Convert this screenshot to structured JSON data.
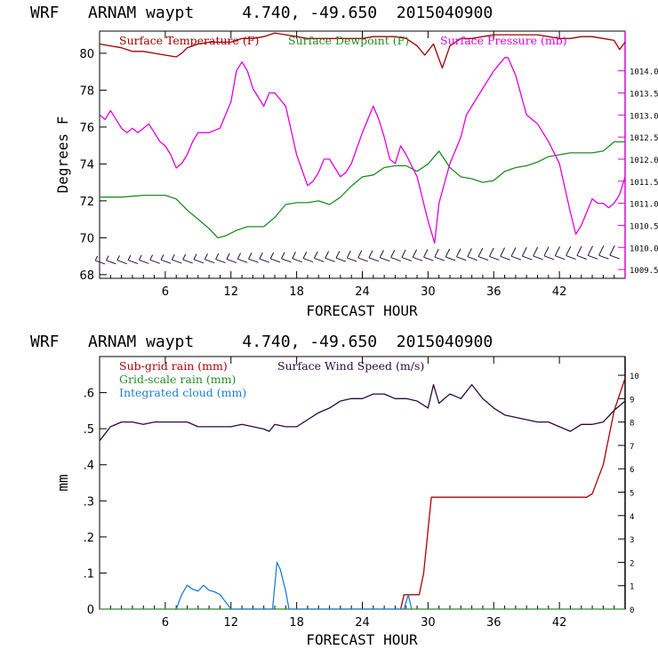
{
  "colors": {
    "temperature": "#a00000",
    "dewpoint": "#1f8c1f",
    "pressure": "#e000e0",
    "rain_subgrid": "#b00000",
    "rain_grid": "#2a8c2a",
    "cloud": "#1e7fd0",
    "wind": "#2a0a40",
    "axis": "#000000"
  },
  "chart_data": [
    {
      "type": "line",
      "title": "WRF   ARNAM waypt     4.740, -49.650  2015040900",
      "xlabel": "FORECAST HOUR",
      "ylabel": "Degrees F",
      "xlim": [
        0,
        48
      ],
      "ylim": [
        67.8,
        81.2
      ],
      "y2lim": [
        1009.3,
        1014.9
      ],
      "xticks": [
        "6",
        "12",
        "18",
        "24",
        "30",
        "36",
        "42"
      ],
      "yticks": [
        "68",
        "70",
        "72",
        "74",
        "76",
        "78",
        "80"
      ],
      "y2ticks": [
        "1009.5",
        "1010.0",
        "1010.5",
        "1011.0",
        "1011.5",
        "1012.0",
        "1012.5",
        "1013.0",
        "1013.5",
        "1014.0"
      ],
      "legend": [
        "Surface Temperature (F)",
        "Surface Dewpoint (F)",
        "Surface Pressure (mb)"
      ],
      "series": [
        {
          "name": "Surface Temperature (F)",
          "axis": "left",
          "x": [
            0,
            1,
            2,
            3,
            4,
            5,
            6,
            7,
            7.5,
            8,
            9,
            10,
            11,
            12,
            13,
            14,
            15,
            16,
            17,
            18,
            19,
            20,
            21,
            22,
            23,
            24,
            25,
            26,
            27,
            28,
            29,
            29.7,
            30.5,
            31.3,
            32,
            33,
            34,
            35,
            36,
            37,
            38,
            39,
            40,
            41,
            42,
            43,
            44,
            45,
            46,
            47,
            47.5,
            48
          ],
          "y": [
            80.5,
            80.4,
            80.3,
            80.1,
            80.1,
            80.0,
            79.9,
            79.8,
            80.0,
            80.3,
            80.5,
            80.6,
            80.6,
            80.6,
            80.8,
            80.8,
            80.9,
            81.1,
            81.0,
            80.9,
            80.8,
            80.8,
            80.8,
            80.8,
            80.8,
            80.8,
            80.9,
            80.9,
            80.9,
            80.8,
            80.4,
            79.9,
            80.5,
            79.2,
            80.4,
            80.8,
            80.8,
            80.9,
            81.0,
            81.0,
            81.0,
            81.0,
            81.0,
            80.9,
            80.8,
            80.8,
            80.9,
            80.9,
            80.8,
            80.7,
            80.2,
            80.6
          ]
        },
        {
          "name": "Surface Dewpoint (F)",
          "axis": "left",
          "x": [
            0,
            2,
            4,
            6,
            7,
            8,
            9,
            10,
            10.8,
            11.5,
            12.5,
            13.5,
            15,
            16,
            17,
            18,
            19,
            20,
            21,
            22,
            23,
            24,
            25,
            26,
            27,
            28,
            29,
            30,
            31,
            32,
            33,
            34,
            35,
            36,
            37,
            38,
            39,
            40,
            41,
            42,
            43,
            44,
            45,
            46,
            47,
            48
          ],
          "y": [
            72.2,
            72.2,
            72.3,
            72.3,
            72.1,
            71.5,
            71.0,
            70.5,
            70.0,
            70.1,
            70.4,
            70.6,
            70.6,
            71.1,
            71.8,
            71.9,
            71.9,
            72.0,
            71.8,
            72.2,
            72.8,
            73.3,
            73.4,
            73.8,
            73.9,
            73.9,
            73.6,
            74.0,
            74.7,
            73.8,
            73.3,
            73.2,
            73.0,
            73.1,
            73.6,
            73.8,
            73.9,
            74.1,
            74.4,
            74.5,
            74.6,
            74.6,
            74.6,
            74.7,
            75.2,
            75.2
          ]
        },
        {
          "name": "Surface Pressure (mb)",
          "axis": "right",
          "x": [
            0,
            0.5,
            1,
            1.5,
            2,
            2.5,
            3,
            3.5,
            4,
            4.5,
            5,
            5.5,
            6,
            6.5,
            7,
            7.5,
            8,
            8.5,
            9,
            10,
            11,
            12,
            12.5,
            13,
            13.5,
            14,
            14.5,
            15,
            15.5,
            16,
            17,
            18,
            19,
            19.5,
            20,
            20.5,
            21,
            21.5,
            22,
            22.5,
            23,
            24,
            25,
            25.5,
            26,
            26.5,
            27,
            27.5,
            28,
            29,
            30,
            30.6,
            31,
            32,
            32.5,
            33,
            33.5,
            34,
            35,
            36,
            37,
            37.3,
            38,
            39,
            40,
            41,
            42,
            43,
            43.5,
            44,
            44.5,
            45,
            45.5,
            46,
            46.5,
            47,
            47.5,
            48
          ],
          "y": [
            1013.0,
            1012.9,
            1013.1,
            1012.9,
            1012.7,
            1012.6,
            1012.7,
            1012.6,
            1012.7,
            1012.8,
            1012.6,
            1012.4,
            1012.3,
            1012.1,
            1011.8,
            1011.9,
            1012.1,
            1012.4,
            1012.6,
            1012.6,
            1012.7,
            1013.3,
            1014.0,
            1014.2,
            1014.0,
            1013.6,
            1013.4,
            1013.2,
            1013.5,
            1013.5,
            1013.2,
            1012.1,
            1011.4,
            1011.5,
            1011.7,
            1012.0,
            1012.0,
            1011.8,
            1011.6,
            1011.7,
            1011.9,
            1012.6,
            1013.2,
            1012.9,
            1012.5,
            1012.0,
            1011.9,
            1012.3,
            1012.1,
            1011.6,
            1010.6,
            1010.1,
            1011.0,
            1011.9,
            1012.2,
            1012.5,
            1013.0,
            1013.2,
            1013.6,
            1014.0,
            1014.3,
            1014.3,
            1013.9,
            1013.0,
            1012.8,
            1012.4,
            1011.9,
            1010.8,
            1010.3,
            1010.5,
            1010.8,
            1011.1,
            1011.0,
            1011.0,
            1010.9,
            1011.0,
            1011.2,
            1011.6
          ]
        }
      ],
      "wind_barbs": "Surface wind barbs along lower margin"
    },
    {
      "type": "line",
      "title": "WRF   ARNAM waypt     4.740, -49.650  2015040900",
      "xlabel": "FORECAST HOUR",
      "ylabel": "mm",
      "xlim": [
        0,
        48
      ],
      "ylim": [
        0,
        0.7
      ],
      "y2lim": [
        0,
        10.8
      ],
      "xticks": [
        "6",
        "12",
        "18",
        "24",
        "30",
        "36",
        "42"
      ],
      "yticks": [
        "0",
        ".1",
        ".2",
        ".3",
        ".4",
        ".5",
        ".6"
      ],
      "y2ticks": [
        "0",
        "1",
        "2",
        "3",
        "4",
        "5",
        "6",
        "7",
        "8",
        "9",
        "10"
      ],
      "legend": [
        "Sub-grid rain (mm)",
        "Grid-scale rain (mm)",
        "Integrated cloud (mm)",
        "Surface Wind Speed (m/s)"
      ],
      "series": [
        {
          "name": "Sub-grid rain (mm)",
          "axis": "left",
          "x": [
            27.5,
            27.8,
            29.2,
            29.6,
            30.0,
            30.3,
            44.5,
            45.0,
            46.0,
            47.0,
            48.0
          ],
          "y": [
            0.0,
            0.04,
            0.04,
            0.1,
            0.22,
            0.31,
            0.31,
            0.32,
            0.4,
            0.55,
            0.64
          ]
        },
        {
          "name": "Grid-scale rain (mm)",
          "axis": "left",
          "x": [
            0,
            48
          ],
          "y": [
            0,
            0
          ]
        },
        {
          "name": "Integrated cloud (mm)",
          "axis": "left",
          "x": [
            7.0,
            7.5,
            8.0,
            8.5,
            9.0,
            9.5,
            10.0,
            10.5,
            11.0,
            11.5,
            12.0,
            15.8,
            16.2,
            16.5,
            17.0,
            17.3,
            27.8,
            28.2,
            28.5
          ],
          "y": [
            0.0,
            0.04,
            0.066,
            0.055,
            0.05,
            0.066,
            0.052,
            0.048,
            0.04,
            0.02,
            0.0,
            0.0,
            0.13,
            0.11,
            0.05,
            0.0,
            0.0,
            0.04,
            0.0
          ]
        },
        {
          "name": "Surface Wind Speed (m/s)",
          "axis": "right",
          "x": [
            0,
            0.5,
            1,
            2,
            3,
            4,
            5,
            6,
            7,
            8,
            9,
            10,
            11,
            12,
            13,
            14,
            15,
            15.5,
            16,
            17,
            18,
            19,
            20,
            21,
            22,
            23,
            24,
            25,
            26,
            27,
            28,
            29,
            30,
            30.5,
            31,
            31.5,
            32,
            33,
            34,
            35,
            36,
            37,
            38,
            39,
            40,
            41,
            42,
            43,
            44,
            45,
            46,
            47,
            48
          ],
          "y": [
            7.2,
            7.5,
            7.8,
            8.0,
            8.0,
            7.9,
            8.0,
            8.0,
            8.0,
            8.0,
            7.8,
            7.8,
            7.8,
            7.8,
            7.9,
            7.8,
            7.7,
            7.6,
            7.9,
            7.8,
            7.8,
            8.1,
            8.4,
            8.6,
            8.9,
            9.0,
            9.0,
            9.2,
            9.2,
            9.0,
            9.0,
            8.9,
            8.6,
            9.6,
            8.8,
            9.0,
            9.2,
            9.0,
            9.6,
            9.0,
            8.6,
            8.3,
            8.2,
            8.1,
            8.0,
            8.0,
            7.8,
            7.6,
            7.9,
            7.9,
            8.0,
            8.5,
            8.9
          ]
        }
      ]
    }
  ]
}
